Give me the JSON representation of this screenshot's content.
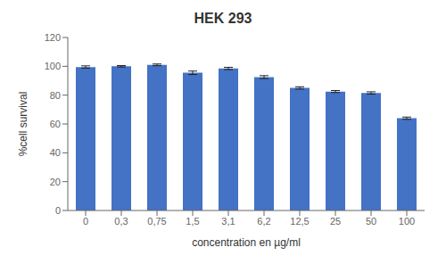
{
  "chart_data": {
    "type": "bar",
    "title": "HEK 293",
    "xlabel": "concentration en µg/ml",
    "ylabel": "%cell survival",
    "categories": [
      "0",
      "0,3",
      "0,75",
      "1,5",
      "3,1",
      "6,2",
      "12,5",
      "25",
      "50",
      "100"
    ],
    "values": [
      99.5,
      100.0,
      101.0,
      95.5,
      98.5,
      92.5,
      85.0,
      82.5,
      81.5,
      64.0
    ],
    "errors": [
      0.8,
      0.5,
      0.6,
      1.2,
      0.8,
      1.0,
      0.8,
      0.7,
      0.8,
      0.8
    ],
    "color": "#4472C4",
    "ylim": [
      0,
      120
    ],
    "yticks": [
      0,
      20,
      40,
      60,
      80,
      100,
      120
    ],
    "grid": false
  }
}
